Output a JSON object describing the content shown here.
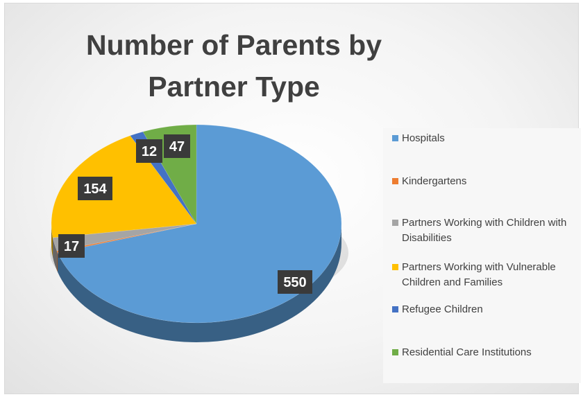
{
  "chart_data": {
    "type": "pie",
    "title": "Number of Parents by Partner Type",
    "categories": [
      "Hospitals",
      "Kindergartens",
      "Partners Working with Children with Disabilities",
      "Partners Working with Vulnerable Children and Families",
      "Refugee Children",
      "Residential Care Institutions"
    ],
    "values": [
      550,
      2,
      17,
      154,
      12,
      47
    ],
    "data_labels": [
      "550",
      "",
      "17",
      "154",
      "12",
      "47"
    ],
    "colors": [
      "#5b9bd5",
      "#ed7d31",
      "#a5a5a5",
      "#ffc000",
      "#4472c4",
      "#70ad47"
    ],
    "legend_position": "right",
    "style": "3d-pie"
  },
  "legend": {
    "items": [
      {
        "label": "Hospitals",
        "color": "#5b9bd5"
      },
      {
        "label": "Kindergartens",
        "color": "#ed7d31"
      },
      {
        "label": "Partners Working with Children with Disabilities",
        "color": "#a5a5a5"
      },
      {
        "label": "Partners Working with Vulnerable Children and Families",
        "color": "#ffc000"
      },
      {
        "label": "Refugee Children",
        "color": "#4472c4"
      },
      {
        "label": "Residential Care Institutions",
        "color": "#70ad47"
      }
    ]
  }
}
